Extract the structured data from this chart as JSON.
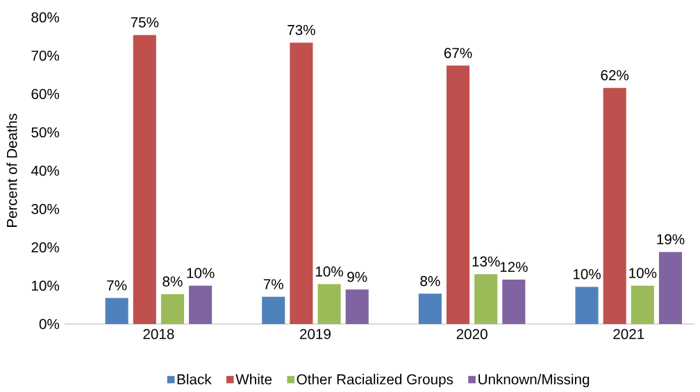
{
  "chart_data": {
    "type": "bar",
    "categories": [
      "2018",
      "2019",
      "2020",
      "2021"
    ],
    "ylabel": "Percent of Deaths",
    "ylim": [
      0,
      80
    ],
    "yticks": [
      {
        "value": 0,
        "label": "0%"
      },
      {
        "value": 10,
        "label": "10%"
      },
      {
        "value": 20,
        "label": "20%"
      },
      {
        "value": 30,
        "label": "30%"
      },
      {
        "value": 40,
        "label": "40%"
      },
      {
        "value": 50,
        "label": "50%"
      },
      {
        "value": 60,
        "label": "60%"
      },
      {
        "value": 70,
        "label": "70%"
      },
      {
        "value": 80,
        "label": "80%"
      }
    ],
    "series": [
      {
        "name": "Black",
        "color": "#4f81bd",
        "values": [
          6.8,
          7.1,
          7.9,
          9.7
        ],
        "value_labels": [
          "7%",
          "7%",
          "8%",
          "10%"
        ]
      },
      {
        "name": "White",
        "color": "#c0504d",
        "values": [
          75.4,
          73.4,
          67.4,
          61.6
        ],
        "value_labels": [
          "75%",
          "73%",
          "67%",
          "62%"
        ]
      },
      {
        "name": "Other Racialized Groups",
        "color": "#9bbb59",
        "values": [
          7.8,
          10.4,
          13.0,
          10.0
        ],
        "value_labels": [
          "8%",
          "10%",
          "13%",
          "10%"
        ]
      },
      {
        "name": "Unknown/Missing",
        "color": "#8064a2",
        "values": [
          10.0,
          9.0,
          11.6,
          18.8
        ],
        "value_labels": [
          "10%",
          "9%",
          "12%",
          "19%"
        ]
      }
    ],
    "legend": "bottom",
    "grid": false
  }
}
